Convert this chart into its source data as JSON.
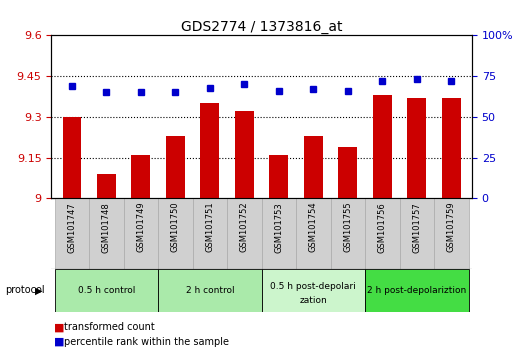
{
  "title": "GDS2774 / 1373816_at",
  "samples": [
    "GSM101747",
    "GSM101748",
    "GSM101749",
    "GSM101750",
    "GSM101751",
    "GSM101752",
    "GSM101753",
    "GSM101754",
    "GSM101755",
    "GSM101756",
    "GSM101757",
    "GSM101759"
  ],
  "red_values": [
    9.3,
    9.09,
    9.16,
    9.23,
    9.35,
    9.32,
    9.16,
    9.23,
    9.19,
    9.38,
    9.37,
    9.37
  ],
  "blue_values": [
    69,
    65,
    65,
    65,
    68,
    70,
    66,
    67,
    66,
    72,
    73,
    72
  ],
  "ylim_left": [
    9.0,
    9.6
  ],
  "ylim_right": [
    0,
    100
  ],
  "yticks_left": [
    9.0,
    9.15,
    9.3,
    9.45,
    9.6
  ],
  "yticks_right": [
    0,
    25,
    50,
    75,
    100
  ],
  "ytick_labels_left": [
    "9",
    "9.15",
    "9.3",
    "9.45",
    "9.6"
  ],
  "ytick_labels_right": [
    "0",
    "25",
    "50",
    "75",
    "100%"
  ],
  "bar_color": "#cc0000",
  "dot_color": "#0000cc",
  "protocol_groups": [
    {
      "label": "0.5 h control",
      "start": 0,
      "end": 3,
      "color": "#aaeaaa"
    },
    {
      "label": "2 h control",
      "start": 3,
      "end": 6,
      "color": "#aaeaaa"
    },
    {
      "label": "0.5 h post-depolarization",
      "start": 6,
      "end": 9,
      "color": "#ccf5cc"
    },
    {
      "label": "2 h post-depolariztion",
      "start": 9,
      "end": 12,
      "color": "#44dd44"
    }
  ],
  "legend_red_label": "transformed count",
  "legend_blue_label": "percentile rank within the sample",
  "protocol_label": "protocol",
  "plot_bg": "#ffffff",
  "sample_box_color": "#d0d0d0",
  "sample_box_edge": "#aaaaaa"
}
